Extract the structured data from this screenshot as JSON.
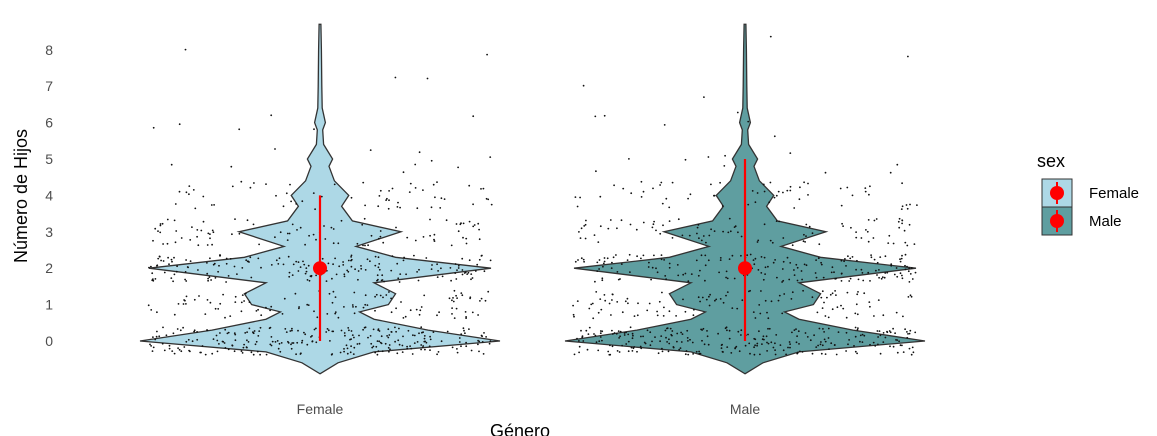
{
  "chart_data": {
    "type": "violin",
    "xlabel": "Género",
    "ylabel": "Número de Hijos",
    "categories": [
      "Female",
      "Male"
    ],
    "y_ticks": [
      0,
      1,
      2,
      3,
      4,
      5,
      6,
      7,
      8
    ],
    "ylim": [
      -0.9,
      8.7
    ],
    "grid": false,
    "legend": {
      "title": "sex",
      "position": "right",
      "entries": [
        {
          "label": "Female",
          "fill": "#add8e6"
        },
        {
          "label": "Male",
          "fill": "#5f9ea0"
        }
      ]
    },
    "colors": {
      "Female": "#add8e6",
      "Male": "#5f9ea0",
      "summary": "#ff0000",
      "points": "#000000"
    },
    "summary": [
      {
        "category": "Female",
        "median": 2,
        "low": 0,
        "high": 4
      },
      {
        "category": "Male",
        "median": 2,
        "low": 0,
        "high": 5
      }
    ],
    "density_profile": [
      {
        "y": -0.9,
        "w": 0.0
      },
      {
        "y": -0.6,
        "w": 0.1
      },
      {
        "y": -0.3,
        "w": 0.3
      },
      {
        "y": 0.0,
        "w": 1.0
      },
      {
        "y": 0.3,
        "w": 0.6
      },
      {
        "y": 0.6,
        "w": 0.3
      },
      {
        "y": 0.8,
        "w": 0.22
      },
      {
        "y": 1.0,
        "w": 0.38
      },
      {
        "y": 1.3,
        "w": 0.42
      },
      {
        "y": 1.6,
        "w": 0.3
      },
      {
        "y": 2.0,
        "w": 0.95
      },
      {
        "y": 2.3,
        "w": 0.42
      },
      {
        "y": 2.6,
        "w": 0.2
      },
      {
        "y": 3.0,
        "w": 0.45
      },
      {
        "y": 3.3,
        "w": 0.18
      },
      {
        "y": 3.7,
        "w": 0.12
      },
      {
        "y": 4.0,
        "w": 0.16
      },
      {
        "y": 4.4,
        "w": 0.08
      },
      {
        "y": 4.8,
        "w": 0.05
      },
      {
        "y": 5.0,
        "w": 0.07
      },
      {
        "y": 5.4,
        "w": 0.02
      },
      {
        "y": 5.8,
        "w": 0.015
      },
      {
        "y": 6.0,
        "w": 0.03
      },
      {
        "y": 6.4,
        "w": 0.012
      },
      {
        "y": 7.0,
        "w": 0.01
      },
      {
        "y": 8.0,
        "w": 0.008
      },
      {
        "y": 8.7,
        "w": 0.005
      }
    ]
  }
}
